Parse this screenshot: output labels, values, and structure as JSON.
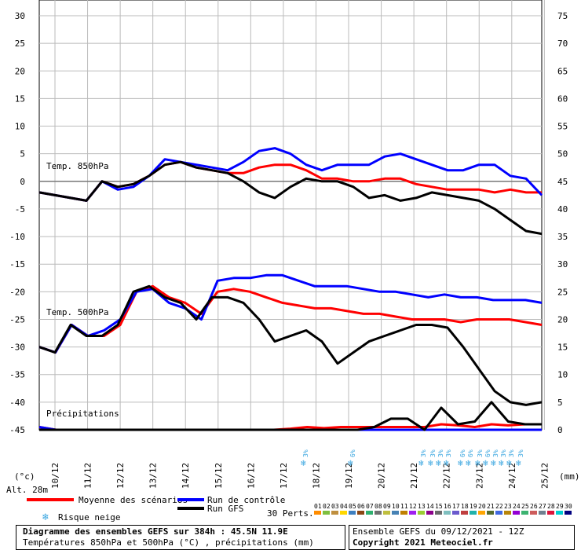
{
  "chart_data": {
    "type": "line",
    "left_axis": {
      "label": "(°c)",
      "ticks": [
        30,
        25,
        20,
        15,
        10,
        5,
        0,
        -5,
        -10,
        -15,
        -20,
        -25,
        -30,
        -35,
        -40,
        -45
      ],
      "range": [
        -45,
        30
      ]
    },
    "right_axis": {
      "label": "(mm)",
      "ticks": [
        75,
        70,
        65,
        60,
        55,
        50,
        45,
        40,
        35,
        30,
        25,
        20,
        15,
        10,
        5,
        0
      ],
      "range": [
        0,
        75
      ]
    },
    "x_dates": [
      "10/12",
      "11/12",
      "12/12",
      "13/12",
      "14/12",
      "15/12",
      "16/12",
      "17/12",
      "18/12",
      "19/12",
      "20/12",
      "21/12",
      "22/12",
      "23/12",
      "24/12",
      "25/12"
    ],
    "panel_labels": {
      "t850": "Temp. 850hPa",
      "t500": "Temp. 500hPa",
      "precip": "Précipitations"
    },
    "altitude": "Alt. 28m",
    "series": [
      {
        "name": "Moyenne des scénarios",
        "color": "#ff0000",
        "t850": [
          -2,
          -2.5,
          -3,
          -3.5,
          0,
          -1,
          -0.5,
          1,
          3,
          3.5,
          2.5,
          2,
          1.5,
          1.5,
          2.5,
          3,
          3,
          2,
          0.5,
          0.5,
          0,
          0,
          0.5,
          0.5,
          -0.5,
          -1,
          -1.5,
          -1.5,
          -1.5,
          -2,
          -1.5,
          -2,
          -2
        ],
        "t500": [
          -30,
          -31,
          -26,
          -28,
          -28,
          -26,
          -20,
          -19,
          -21,
          -22,
          -24,
          -20,
          -19.5,
          -20,
          -21,
          -22,
          -22.5,
          -23,
          -23,
          -23.5,
          -24,
          -24,
          -24.5,
          -25,
          -25,
          -25,
          -25.5,
          -25,
          -25,
          -25,
          -25.5,
          -26
        ],
        "precip": [
          0.5,
          0,
          0,
          0,
          0,
          0,
          0,
          0,
          0,
          0,
          0,
          0,
          0,
          0,
          0,
          0.2,
          0.5,
          0.3,
          0.5,
          0.5,
          0.5,
          0.5,
          0.5,
          0.5,
          1,
          0.8,
          0.5,
          1,
          0.8,
          1,
          1
        ]
      },
      {
        "name": "Run de contrôle",
        "color": "#0000ff",
        "t850": [
          -2,
          -2.5,
          -3,
          -3.5,
          0,
          -1.5,
          -1,
          1,
          4,
          3.5,
          3,
          2.5,
          2,
          3.5,
          5.5,
          6,
          5,
          3,
          2,
          3,
          3,
          3,
          4.5,
          5,
          4,
          3,
          2,
          2,
          3,
          3,
          1,
          0.5,
          -2.5
        ],
        "t500": [
          -30,
          -31,
          -26,
          -28,
          -27,
          -25,
          -20,
          -19.5,
          -22,
          -23,
          -25,
          -18,
          -17.5,
          -17.5,
          -17,
          -17,
          -18,
          -19,
          -19,
          -19,
          -19.5,
          -20,
          -20,
          -20.5,
          -21,
          -20.5,
          -21,
          -21,
          -21.5,
          -21.5,
          -21.5,
          -22
        ],
        "precip": [
          0.5,
          0,
          0,
          0,
          0,
          0,
          0,
          0,
          0,
          0,
          0,
          0,
          0,
          0,
          0,
          0,
          0,
          0,
          0,
          0,
          0,
          0,
          0,
          0,
          0,
          0,
          0,
          0,
          0,
          0,
          0
        ]
      },
      {
        "name": "Run GFS",
        "color": "#000000",
        "t850": [
          -2,
          -2.5,
          -3,
          -3.5,
          0,
          -1,
          -0.5,
          1,
          3,
          3.5,
          2.5,
          2,
          1.5,
          0,
          -2,
          -3,
          -1,
          0.5,
          0,
          0,
          -1,
          -3,
          -2.5,
          -3.5,
          -3,
          -2,
          -2.5,
          -3,
          -3.5,
          -5,
          -7,
          -9,
          -9.5
        ],
        "t500": [
          -30,
          -31,
          -26,
          -28,
          -28,
          -26,
          -20,
          -19,
          -21,
          -22,
          -25,
          -21,
          -21,
          -22,
          -25,
          -29,
          -28,
          -27,
          -29,
          -33,
          -31,
          -29,
          -28,
          -27,
          -26,
          -26,
          -26.5,
          -30,
          -34,
          -38,
          -40,
          -40.5,
          -40
        ],
        "precip": [
          0,
          0,
          0,
          0,
          0,
          0,
          0,
          0,
          0,
          0,
          0,
          0,
          0,
          0,
          0,
          0,
          0,
          0,
          0,
          0,
          0.5,
          2,
          2,
          0,
          4,
          1,
          1.5,
          5,
          1.5,
          1,
          1
        ]
      }
    ],
    "snow_risk_labels": [
      "3%",
      "6%",
      "3%",
      "3%",
      "3%",
      "3%",
      "6%",
      "6%",
      "3%",
      "6%",
      "3%",
      "3%",
      "3%",
      "3%"
    ]
  },
  "legend": {
    "mean": "Moyenne des scénarios",
    "control": "Run de contrôle",
    "gfs": "Run GFS",
    "snow": "Risque neige",
    "perts": "30 Perts.",
    "pert_numbers": [
      "01",
      "02",
      "03",
      "04",
      "05",
      "06",
      "07",
      "08",
      "09",
      "10",
      "11",
      "12",
      "13",
      "14",
      "15",
      "16",
      "17",
      "18",
      "19",
      "20",
      "21",
      "22",
      "23",
      "24",
      "25",
      "26",
      "27",
      "28",
      "29",
      "30"
    ],
    "pert_colors": [
      "#ff8c00",
      "#7fbf3f",
      "#bf8f3f",
      "#ffd700",
      "#3f7fbf",
      "#8b4513",
      "#2faf6f",
      "#6f6f6f",
      "#bfbf3f",
      "#4682b4",
      "#bf7f00",
      "#a020f0",
      "#9acd32",
      "#8b008b",
      "#696969",
      "#7fbfbf",
      "#6a5acd",
      "#bf3f3f",
      "#20b2aa",
      "#ffa500",
      "#556b2f",
      "#4169e1",
      "#b8860b",
      "#9400d3",
      "#3cb371",
      "#cd5c5c",
      "#708090",
      "#dc143c",
      "#00ced1",
      "#000080"
    ]
  },
  "footer": {
    "title": "Diagramme des ensembles GEFS sur 384h : 45.5N 11.9E",
    "subtitle": "Températures 850hPa et 500hPa (°C) , précipitations (mm)",
    "run_info": "Ensemble GEFS du 09/12/2021 - 12Z",
    "copyright": "Copyright 2021 Meteociel.fr"
  }
}
